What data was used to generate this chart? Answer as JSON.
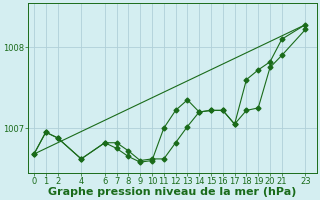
{
  "background_color": "#d4eef1",
  "grid_color": "#b0d0d8",
  "line_color": "#1a6b1a",
  "title": "Graphe pression niveau de la mer (hPa)",
  "ylabel_ticks": [
    1007,
    1008
  ],
  "xticks": [
    0,
    1,
    2,
    4,
    6,
    7,
    8,
    9,
    10,
    11,
    12,
    13,
    14,
    15,
    16,
    17,
    18,
    19,
    20,
    21,
    23
  ],
  "xlim": [
    -0.5,
    24.0
  ],
  "ylim": [
    1006.45,
    1008.55
  ],
  "series1_x": [
    0,
    1,
    2,
    4,
    6,
    7,
    8,
    9,
    10,
    11,
    12,
    13,
    14,
    15,
    16,
    17,
    18,
    19,
    20,
    21,
    23
  ],
  "series1_y": [
    1006.68,
    1006.95,
    1006.88,
    1006.62,
    1006.82,
    1006.82,
    1006.72,
    1006.6,
    1006.62,
    1006.62,
    1006.82,
    1007.02,
    1007.2,
    1007.22,
    1007.22,
    1007.05,
    1007.22,
    1007.25,
    1007.75,
    1007.9,
    1008.22
  ],
  "series2_x": [
    0,
    1,
    2,
    4,
    6,
    7,
    8,
    9,
    10,
    11,
    12,
    13,
    14,
    15,
    16,
    17,
    18,
    19,
    20,
    21,
    23
  ],
  "series2_y": [
    1006.68,
    1006.95,
    1006.88,
    1006.62,
    1006.82,
    1006.75,
    1006.65,
    1006.58,
    1006.6,
    1007.0,
    1007.22,
    1007.35,
    1007.2,
    1007.22,
    1007.22,
    1007.05,
    1007.6,
    1007.72,
    1007.82,
    1008.1,
    1008.28
  ],
  "series3_x": [
    0,
    23
  ],
  "series3_y": [
    1006.68,
    1008.28
  ],
  "marker": "D",
  "marker_size": 2.5,
  "linewidth": 0.8,
  "title_fontsize": 8,
  "tick_fontsize": 6
}
